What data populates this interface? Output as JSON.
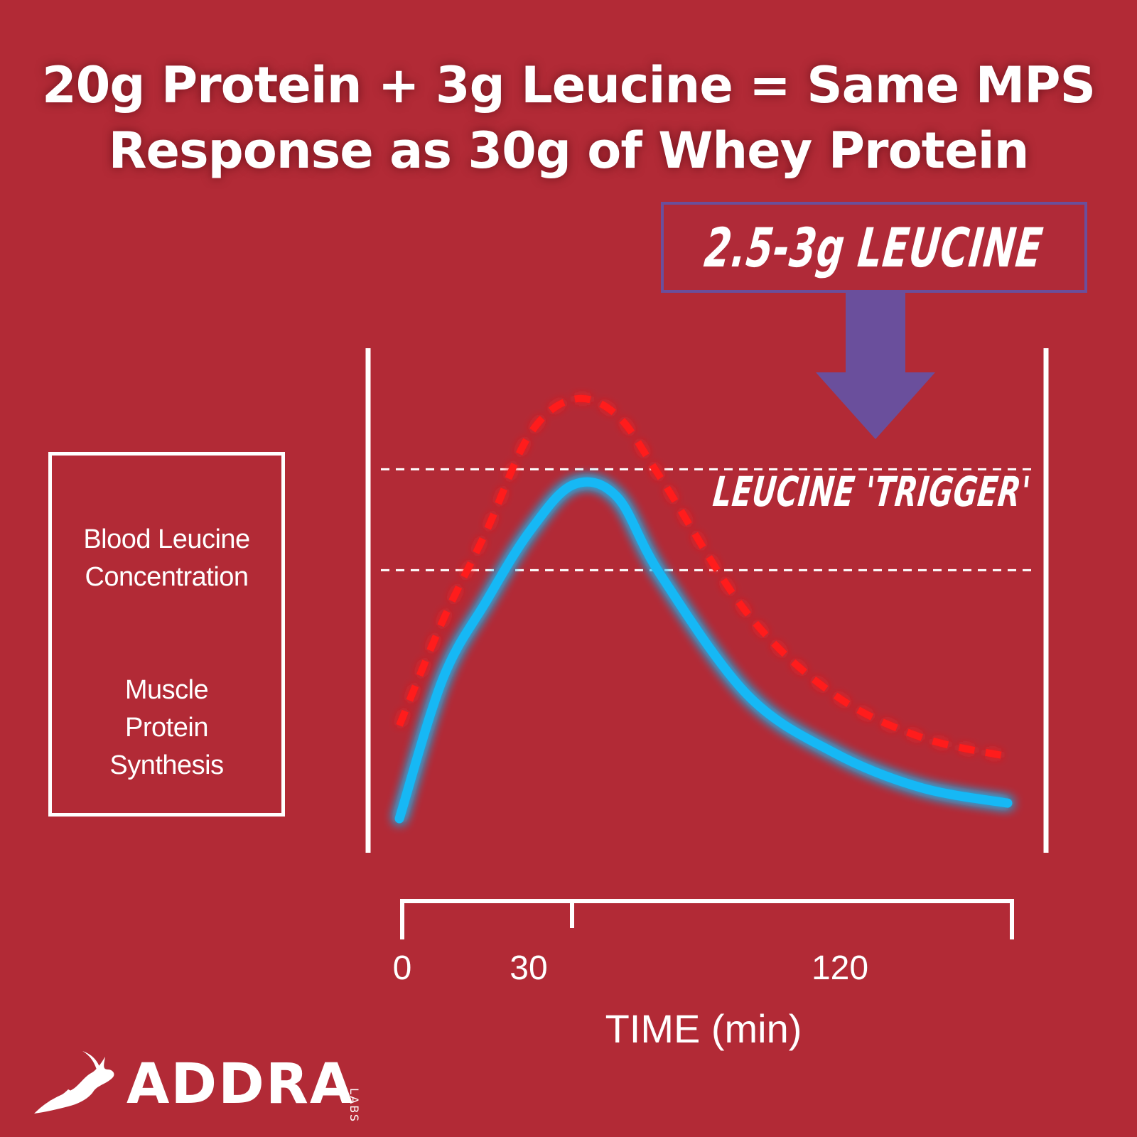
{
  "title": {
    "line1": "20g Protein + 3g Leucine = Same MPS",
    "line2": "Response as 30g of Whey Protein"
  },
  "callout": {
    "text": "2.5-3g LEUCINE",
    "border_color": "#6a4f9c",
    "arrow_color": "#6a4f9c"
  },
  "legend": {
    "series1_label_line1": "Blood Leucine",
    "series1_label_line2": "Concentration",
    "series2_label_line1": "Muscle",
    "series2_label_line2": "Protein",
    "series2_label_line3": "Synthesis"
  },
  "annotation": {
    "trigger_label": "LEUCINE 'TRIGGER'"
  },
  "logo": {
    "name": "ADDRA",
    "sub": "LABS",
    "icon": "gazelle-icon"
  },
  "colors": {
    "background": "#b22a36",
    "blood_leucine": "#ff1a1a",
    "mps": "#12b8f5"
  },
  "chart_data": {
    "type": "line",
    "xlabel": "TIME (min)",
    "ylabel": "",
    "x_ticks": [
      "0",
      "30",
      "120"
    ],
    "y_axis_labels": "none",
    "legend_position": "left",
    "series": [
      {
        "name": "Blood Leucine Concentration",
        "style": "dashed",
        "x": [
          0,
          10,
          20,
          30,
          40,
          50,
          60,
          80,
          100,
          120,
          140
        ],
        "y": [
          0.24,
          0.51,
          0.74,
          0.99,
          1.08,
          1.04,
          0.88,
          0.53,
          0.32,
          0.21,
          0.16
        ]
      },
      {
        "name": "Muscle Protein Synthesis",
        "style": "solid",
        "x": [
          0,
          10,
          20,
          30,
          40,
          50,
          60,
          80,
          100,
          120,
          140
        ],
        "y": [
          0.0,
          0.36,
          0.56,
          0.74,
          0.86,
          0.83,
          0.63,
          0.32,
          0.17,
          0.08,
          0.04
        ]
      }
    ],
    "thresholds": [
      {
        "name": "upper",
        "y": 0.9
      },
      {
        "name": "lower",
        "y": 0.64
      }
    ],
    "threshold_label": "LEUCINE 'TRIGGER'"
  }
}
